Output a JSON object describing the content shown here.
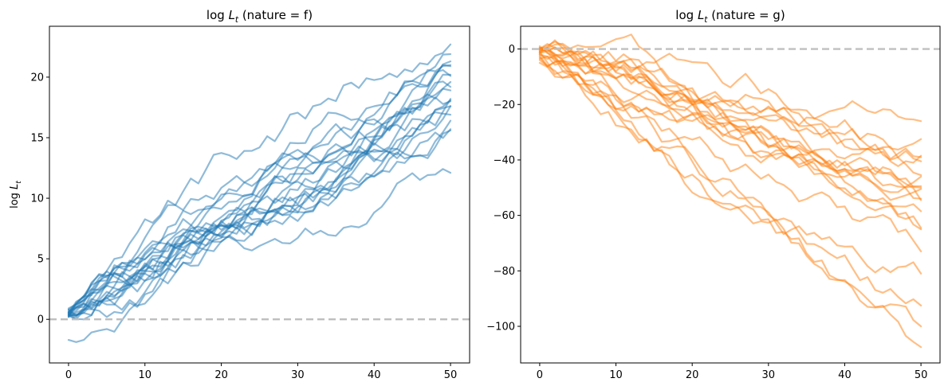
{
  "chart_data": [
    {
      "type": "line",
      "title": "log L_t (nature = f)",
      "title_prefix": "log ",
      "title_var": "L",
      "title_sub": "t",
      "title_suffix": " (nature = f)",
      "ylabel_prefix": "log ",
      "ylabel_var": "L",
      "ylabel_sub": "t",
      "xlim": [
        -2.5,
        52.5
      ],
      "ylim": [
        -3.6,
        24.2
      ],
      "xticks": [
        0,
        10,
        20,
        30,
        40,
        50
      ],
      "yticks": [
        0,
        5,
        10,
        15,
        20
      ],
      "color": "#1f77b4",
      "line_alpha": 0.5,
      "reference_line": 0,
      "grid": false,
      "series_endpoints": [
        [
          0.2,
          18.2
        ],
        [
          0.4,
          19.6
        ],
        [
          0.3,
          20.1
        ],
        [
          0.4,
          21.3
        ],
        [
          0.6,
          22.7
        ],
        [
          0.5,
          16.9
        ],
        [
          0.8,
          17.6
        ],
        [
          0.2,
          18.9
        ],
        [
          0.3,
          20.9
        ],
        [
          0.4,
          21.0
        ],
        [
          0.7,
          15.6
        ],
        [
          0.4,
          19.2
        ],
        [
          0.5,
          21.9
        ],
        [
          0.6,
          18.0
        ],
        [
          0.3,
          16.4
        ],
        [
          0.6,
          20.2
        ],
        [
          0.9,
          17.6
        ],
        [
          0.5,
          15.7
        ],
        [
          -1.7,
          12.1
        ],
        [
          0.8,
          18.1
        ]
      ]
    },
    {
      "type": "line",
      "title": "log L_t (nature = g)",
      "title_prefix": "log ",
      "title_var": "L",
      "title_sub": "t",
      "title_suffix": " (nature = g)",
      "xlim": [
        -2.5,
        52.5
      ],
      "ylim": [
        -113.2,
        8.2
      ],
      "xticks": [
        0,
        10,
        20,
        30,
        40,
        50
      ],
      "yticks": [
        0,
        -20,
        -40,
        -60,
        -80,
        -100
      ],
      "color": "#ff7f0e",
      "line_alpha": 0.5,
      "reference_line": 0,
      "grid": false,
      "series_endpoints": [
        [
          0.5,
          -26.0
        ],
        [
          -1.0,
          -32.5
        ],
        [
          0.0,
          -38.5
        ],
        [
          -2.0,
          -40.5
        ],
        [
          1.0,
          -45.5
        ],
        [
          -0.5,
          -49.5
        ],
        [
          -1.5,
          -50.5
        ],
        [
          -2.5,
          -54.0
        ],
        [
          0.0,
          -54.5
        ],
        [
          -3.0,
          -58.5
        ],
        [
          -0.5,
          -64.5
        ],
        [
          -4.0,
          -73.0
        ],
        [
          -1.0,
          -81.0
        ],
        [
          -5.0,
          -92.5
        ],
        [
          0.5,
          -100.0
        ],
        [
          -2.0,
          -107.5
        ],
        [
          -1.0,
          -46.0
        ],
        [
          -3.5,
          -50.0
        ],
        [
          0.0,
          -65.0
        ],
        [
          -1.5,
          -39.0
        ]
      ]
    }
  ]
}
